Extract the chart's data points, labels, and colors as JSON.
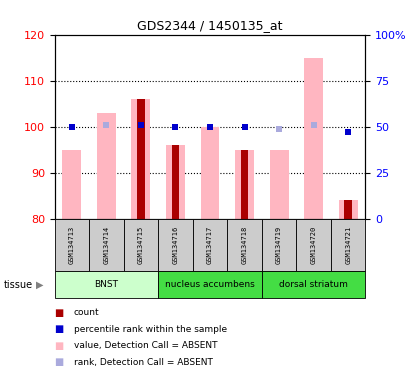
{
  "title": "GDS2344 / 1450135_at",
  "samples": [
    "GSM134713",
    "GSM134714",
    "GSM134715",
    "GSM134716",
    "GSM134717",
    "GSM134718",
    "GSM134719",
    "GSM134720",
    "GSM134721"
  ],
  "ylim_left": [
    80,
    120
  ],
  "ylim_right": [
    0,
    100
  ],
  "yticks_left": [
    80,
    90,
    100,
    110,
    120
  ],
  "yticks_right": [
    0,
    25,
    50,
    75,
    100
  ],
  "ytick_labels_right": [
    "0",
    "25",
    "50",
    "75",
    "100%"
  ],
  "value_absent": [
    95,
    103,
    106,
    96,
    100,
    95,
    95,
    115,
    84
  ],
  "rank_absent": [
    50,
    51,
    51,
    null,
    50,
    null,
    49,
    51,
    null
  ],
  "count_bars": [
    null,
    null,
    106,
    96,
    null,
    95,
    null,
    null,
    84
  ],
  "percentile_rank": [
    50,
    null,
    51,
    50,
    50,
    50,
    null,
    null,
    47
  ],
  "tissues": [
    {
      "label": "BNST",
      "start": 0,
      "end": 3,
      "color": "#CCFFCC"
    },
    {
      "label": "nucleus accumbens",
      "start": 3,
      "end": 6,
      "color": "#44DD44"
    },
    {
      "label": "dorsal striatum",
      "start": 6,
      "end": 9,
      "color": "#44DD44"
    }
  ],
  "color_count": "#AA0000",
  "color_percentile": "#0000CC",
  "color_value_absent": "#FFB6C1",
  "color_rank_absent": "#AAAADD",
  "sample_box_color": "#CCCCCC"
}
